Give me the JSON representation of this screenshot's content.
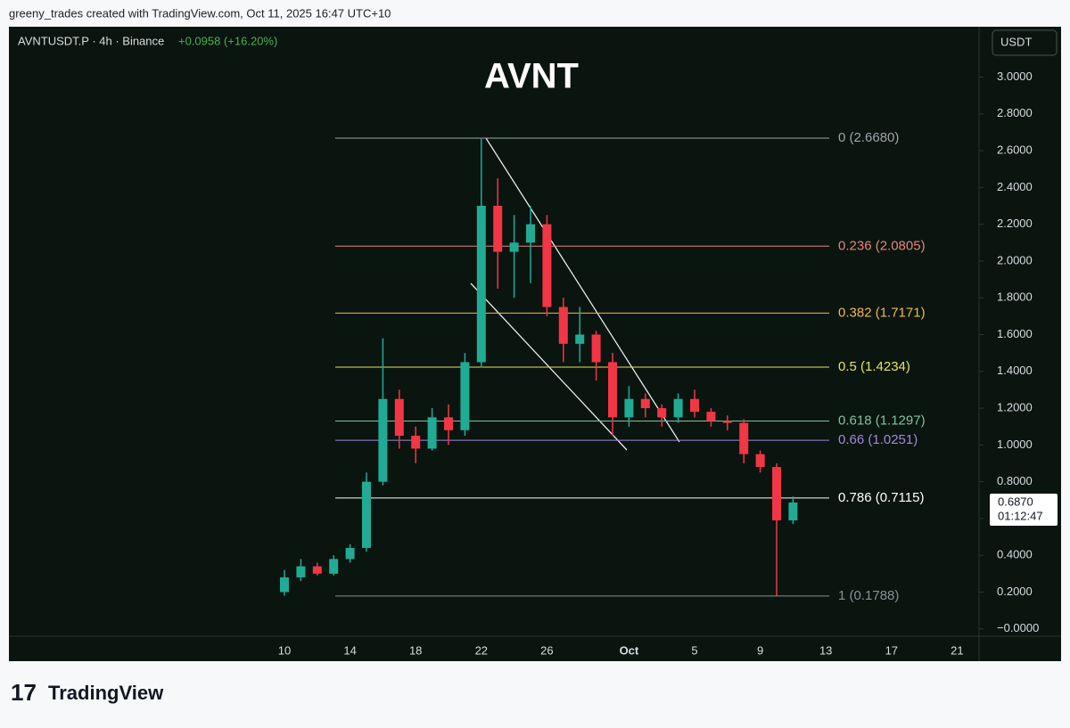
{
  "header": {
    "credit": "greeny_trades created with TradingView.com, Oct 11, 2025 16:47 UTC+10"
  },
  "footer": {
    "brand": "TradingView"
  },
  "chart_data": {
    "type": "candlestick",
    "title": "AVNT",
    "symbol": "AVNTUSDT.P · 4h · Binance",
    "change": "+0.0958 (+16.20%)",
    "currency": "USDT",
    "up_color": "#22ab94",
    "down_color": "#f23645",
    "categories": [
      "10",
      null,
      null,
      null,
      "14",
      null,
      null,
      null,
      "18",
      null,
      null,
      null,
      "22",
      null,
      null,
      null,
      "26",
      null,
      null,
      null,
      null,
      "Oct",
      null,
      null,
      null,
      "5",
      null,
      null,
      null,
      "9",
      null,
      null,
      null,
      "13",
      null,
      null,
      null,
      "17",
      null,
      null,
      null,
      "21"
    ],
    "open": [
      0.2,
      0.28,
      0.34,
      0.3,
      0.38,
      0.44,
      0.8,
      1.25,
      1.05,
      0.98,
      1.15,
      1.08,
      1.45,
      2.3,
      2.05,
      2.1,
      2.2,
      1.75,
      1.55,
      1.6,
      1.45,
      1.15,
      1.25,
      1.2,
      1.15,
      1.25,
      1.18,
      1.13,
      1.12,
      0.95,
      0.88,
      0.59,
      null,
      null,
      null,
      null,
      null,
      null,
      null,
      null,
      null,
      null
    ],
    "high": [
      0.32,
      0.38,
      0.36,
      0.4,
      0.46,
      0.85,
      1.58,
      1.3,
      1.1,
      1.2,
      1.22,
      1.5,
      2.67,
      2.45,
      2.25,
      2.3,
      2.25,
      1.8,
      1.75,
      1.62,
      1.5,
      1.32,
      1.28,
      1.22,
      1.28,
      1.3,
      1.2,
      1.16,
      1.14,
      0.97,
      0.9,
      0.72,
      null,
      null,
      null,
      null,
      null,
      null,
      null,
      null,
      null,
      null
    ],
    "low": [
      0.18,
      0.26,
      0.29,
      0.29,
      0.36,
      0.42,
      0.78,
      0.98,
      0.9,
      0.97,
      1.0,
      1.05,
      1.42,
      1.85,
      1.8,
      1.88,
      1.7,
      1.45,
      1.45,
      1.35,
      1.05,
      1.1,
      1.15,
      1.1,
      1.12,
      1.15,
      1.1,
      1.08,
      0.9,
      0.85,
      0.18,
      0.57,
      null,
      null,
      null,
      null,
      null,
      null,
      null,
      null,
      null,
      null
    ],
    "close": [
      0.28,
      0.34,
      0.3,
      0.38,
      0.44,
      0.8,
      1.25,
      1.05,
      0.98,
      1.15,
      1.08,
      1.45,
      2.3,
      2.05,
      2.1,
      2.2,
      1.75,
      1.55,
      1.6,
      1.45,
      1.15,
      1.25,
      1.2,
      1.15,
      1.25,
      1.18,
      1.13,
      1.12,
      0.95,
      0.88,
      0.59,
      0.687,
      null,
      null,
      null,
      null,
      null,
      null,
      null,
      null,
      null,
      null
    ],
    "ylim": [
      -0.04,
      3.08
    ],
    "yticks": [
      {
        "value": 3,
        "label": "3.0000"
      },
      {
        "value": 2.8,
        "label": "2.8000"
      },
      {
        "value": 2.6,
        "label": "2.6000"
      },
      {
        "value": 2.4,
        "label": "2.4000"
      },
      {
        "value": 2.2,
        "label": "2.2000"
      },
      {
        "value": 2,
        "label": "2.0000"
      },
      {
        "value": 1.8,
        "label": "1.8000"
      },
      {
        "value": 1.6,
        "label": "1.6000"
      },
      {
        "value": 1.4,
        "label": "1.4000"
      },
      {
        "value": 1.2,
        "label": "1.2000"
      },
      {
        "value": 1,
        "label": "1.0000"
      },
      {
        "value": 0.8,
        "label": "0.8000"
      },
      {
        "value": 0.6,
        "label": "0.6000"
      },
      {
        "value": 0.4,
        "label": "0.4000"
      },
      {
        "value": 0.2,
        "label": "0.2000"
      },
      {
        "value": 0,
        "label": "−0.0000"
      }
    ],
    "fib_levels": [
      {
        "label": "0 (2.6680)",
        "value": 2.668,
        "color": "#9ea3a8"
      },
      {
        "label": "0.236 (2.0805)",
        "value": 2.0805,
        "color": "#e8837a"
      },
      {
        "label": "0.382 (1.7171)",
        "value": 1.7171,
        "color": "#f2b84b"
      },
      {
        "label": "0.5 (1.4234)",
        "value": 1.4234,
        "color": "#e6e35c"
      },
      {
        "label": "0.618 (1.1297)",
        "value": 1.1297,
        "color": "#80c29e"
      },
      {
        "label": "0.66 (1.0251)",
        "value": 1.0251,
        "color": "#a487d6"
      },
      {
        "label": "0.786 (0.7115)",
        "value": 0.7115,
        "color": "#ffffff"
      },
      {
        "label": "1 (0.1788)",
        "value": 0.1788,
        "color": "#8a8f94"
      }
    ],
    "last_price": {
      "value": 0.687,
      "label": "0.6870"
    },
    "countdown": "01:12:47"
  }
}
